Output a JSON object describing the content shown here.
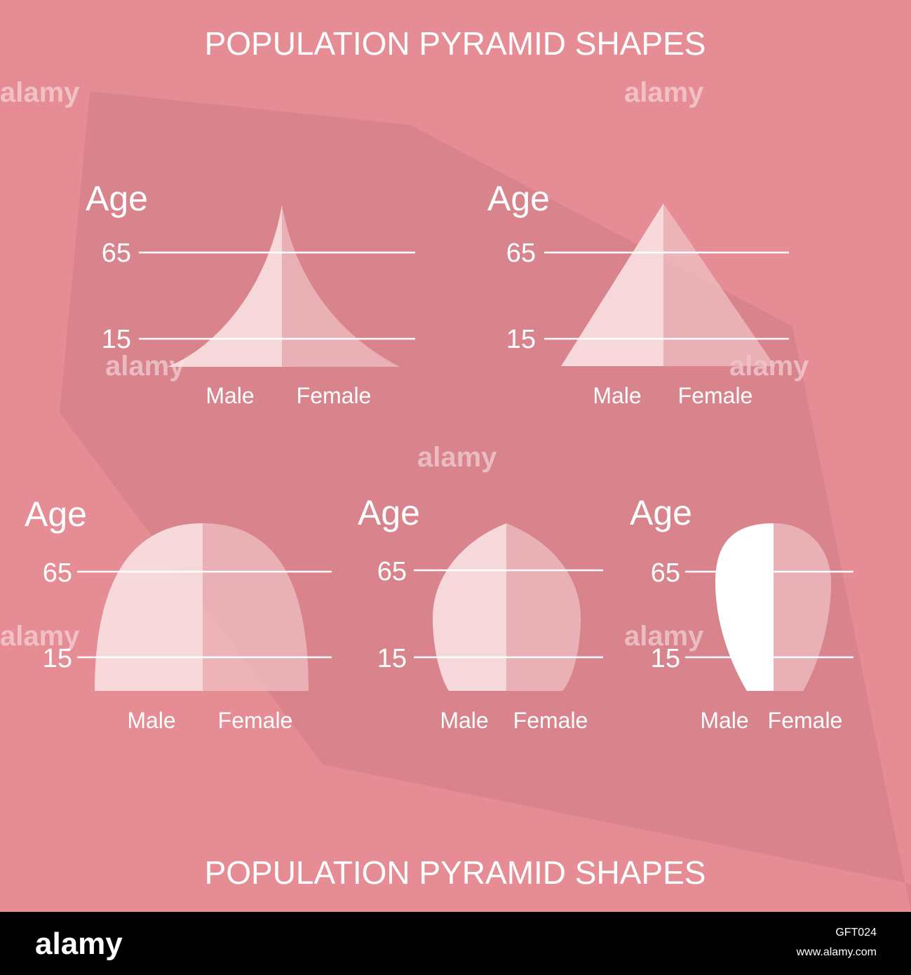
{
  "header": {
    "title": "POPULATION PYRAMID SHAPES"
  },
  "panels": [
    {
      "axis_label": "Age",
      "ticks": [
        "65",
        "15"
      ],
      "male": "Male",
      "female": "Female"
    },
    {
      "axis_label": "Age",
      "ticks": [
        "65",
        "15"
      ],
      "male": "Male",
      "female": "Female"
    },
    {
      "axis_label": "Age",
      "ticks": [
        "65",
        "15"
      ],
      "male": "Male",
      "female": "Female"
    },
    {
      "axis_label": "Age",
      "ticks": [
        "65",
        "15"
      ],
      "male": "Male",
      "female": "Female"
    },
    {
      "axis_label": "Age",
      "ticks": [
        "65",
        "15"
      ],
      "male": "Male",
      "female": "Female"
    }
  ],
  "footer_title": "POPULATION PYRAMID SHAPES",
  "watermark": "alamy",
  "footer": {
    "brand": "alamy",
    "image_id": "GFT024",
    "url": "www.alamy.com"
  }
}
